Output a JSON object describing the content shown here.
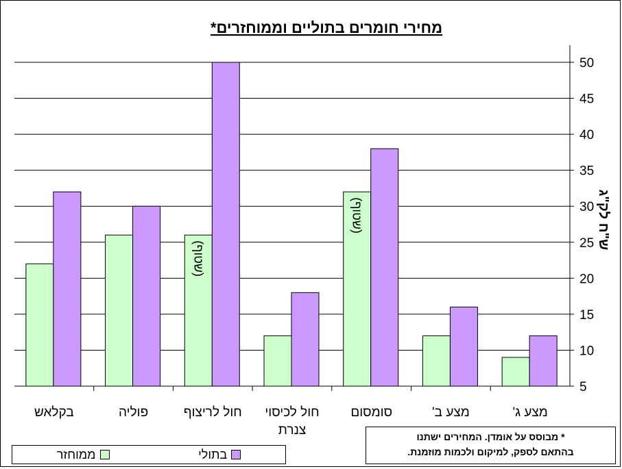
{
  "chart_data": {
    "type": "bar",
    "title": "מחירי חומרים בתוליים וממוחזרים*",
    "ylabel": "ש\"ח לק\"ג",
    "ylim": [
      5,
      50
    ],
    "yticks": [
      5,
      10,
      15,
      20,
      25,
      30,
      35,
      40,
      45,
      50
    ],
    "categories": [
      "בקלאש",
      "פוליה",
      "חול לריצוף",
      "חול לכיסוי צנרת",
      "סומסום",
      "מצע ב'",
      "מצע ג'"
    ],
    "series": [
      {
        "name": "ממוחזר",
        "color": "#ccffcc",
        "values": [
          22,
          26,
          26,
          12,
          32,
          12,
          9
        ]
      },
      {
        "name": "בתולי",
        "color": "#cc99ff",
        "values": [
          32,
          30,
          50,
          18,
          38,
          16,
          12
        ]
      }
    ],
    "bar_annotations": [
      {
        "category_index": 2,
        "series_index": 0,
        "text": "(שטוף)"
      },
      {
        "category_index": 4,
        "series_index": 0,
        "text": "(שטוף)"
      }
    ],
    "grid": true,
    "legend_position": "bottom-left"
  },
  "footnote": {
    "line1": "* מבוסס על אומדן. המחירים ישתנו",
    "line2": "בהתאם לספק, למיקום ולכמות מוזמנת."
  }
}
